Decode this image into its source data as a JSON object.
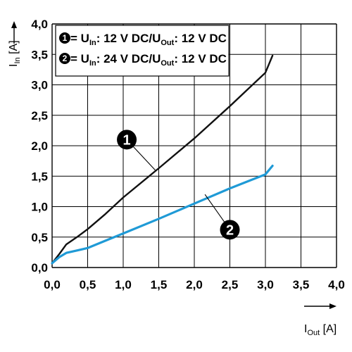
{
  "chart_data": {
    "type": "line",
    "xlabel": {
      "main": "I",
      "sub": "Out",
      "unit": " [A]"
    },
    "ylabel": {
      "main": "I",
      "sub": "In",
      "unit": " [A]"
    },
    "xlim": [
      0,
      4
    ],
    "ylim": [
      0,
      4
    ],
    "grid": true,
    "x_ticks": [
      "0,0",
      "0,5",
      "1,0",
      "1,5",
      "2,0",
      "2,5",
      "3,0",
      "3,5",
      "4,0"
    ],
    "y_ticks": [
      "0,0",
      "0,5",
      "1,0",
      "1,5",
      "2,0",
      "2,5",
      "3,0",
      "3,5",
      "4,0"
    ],
    "legend": [
      {
        "marker": "1",
        "text_parts": [
          " = U",
          "In",
          ": 12 V DC/U",
          "Out",
          ": 12 V DC"
        ]
      },
      {
        "marker": "2",
        "text_parts": [
          " = U",
          "In",
          ": 24 V DC/U",
          "Out",
          ": 12 V DC"
        ]
      }
    ],
    "series": [
      {
        "marker": "1",
        "color": "#111111",
        "points": [
          [
            0.0,
            0.07
          ],
          [
            0.1,
            0.22
          ],
          [
            0.2,
            0.38
          ],
          [
            0.35,
            0.5
          ],
          [
            0.5,
            0.63
          ],
          [
            0.75,
            0.88
          ],
          [
            1.0,
            1.15
          ],
          [
            1.5,
            1.63
          ],
          [
            2.0,
            2.12
          ],
          [
            2.5,
            2.65
          ],
          [
            3.0,
            3.2
          ],
          [
            3.1,
            3.48
          ]
        ]
      },
      {
        "marker": "2",
        "color": "#1f9ad6",
        "points": [
          [
            0.0,
            0.07
          ],
          [
            0.1,
            0.17
          ],
          [
            0.2,
            0.24
          ],
          [
            0.35,
            0.28
          ],
          [
            0.5,
            0.32
          ],
          [
            0.75,
            0.44
          ],
          [
            1.0,
            0.56
          ],
          [
            1.5,
            0.8
          ],
          [
            2.0,
            1.05
          ],
          [
            2.5,
            1.3
          ],
          [
            3.0,
            1.53
          ],
          [
            3.1,
            1.67
          ]
        ]
      }
    ],
    "annotations": [
      {
        "label": "1",
        "at": [
          1.45,
          1.6
        ],
        "label_pos": [
          1.05,
          2.1
        ]
      },
      {
        "label": "2",
        "at": [
          2.15,
          1.2
        ],
        "label_pos": [
          2.5,
          0.62
        ]
      }
    ]
  }
}
